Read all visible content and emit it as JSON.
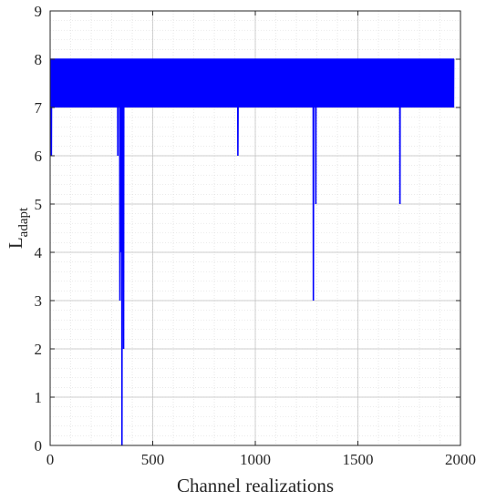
{
  "chart_data": {
    "type": "line",
    "title": "",
    "xlabel": "Channel realizations",
    "ylabel_main": "L",
    "ylabel_sub": "adapt",
    "xlim": [
      0,
      2000
    ],
    "ylim": [
      0,
      9
    ],
    "xticks": [
      0,
      500,
      1000,
      1500,
      2000
    ],
    "yticks": [
      0,
      1,
      2,
      3,
      4,
      5,
      6,
      7,
      8,
      9
    ],
    "grid": true,
    "minor_grid": true,
    "series": [
      {
        "name": "",
        "color": "#0000ff",
        "n_points": 1970,
        "base_value": 8,
        "low_value": 7,
        "dips": [
          {
            "x": 6,
            "y": 6
          },
          {
            "x": 330,
            "y": 6
          },
          {
            "x": 340,
            "y": 3
          },
          {
            "x": 343,
            "y": 5
          },
          {
            "x": 346,
            "y": 4
          },
          {
            "x": 350,
            "y": 0
          },
          {
            "x": 354,
            "y": 4
          },
          {
            "x": 358,
            "y": 2
          },
          {
            "x": 915,
            "y": 6
          },
          {
            "x": 1283,
            "y": 3
          },
          {
            "x": 1295,
            "y": 5
          },
          {
            "x": 1705,
            "y": 5
          }
        ]
      }
    ]
  }
}
